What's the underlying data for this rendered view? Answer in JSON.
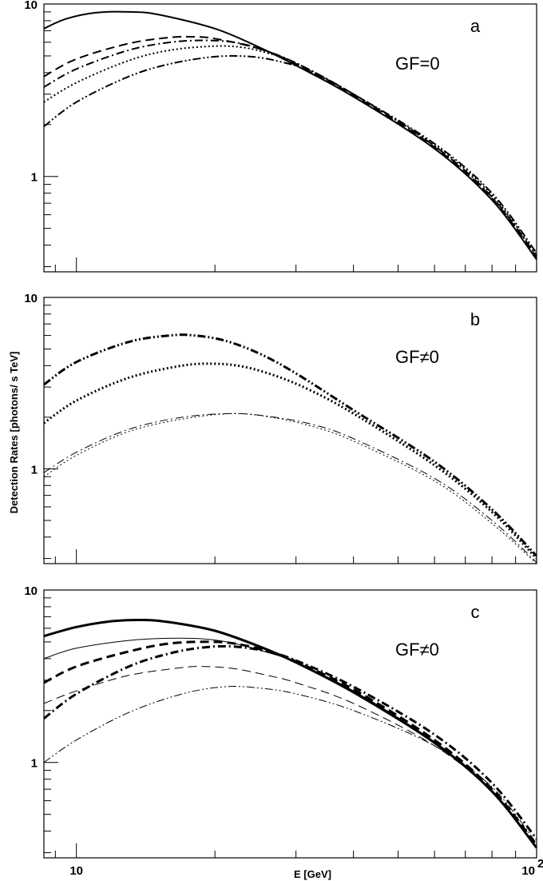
{
  "chart_data": [
    {
      "type": "line",
      "panel_label": "a",
      "annotation": "GF=0",
      "xscale": "log",
      "yscale": "log",
      "xlim": [
        8.5,
        100
      ],
      "ylim": [
        0.28,
        10
      ],
      "yticks": [
        {
          "value": 1,
          "label": "1"
        },
        {
          "value": 10,
          "label": "10"
        }
      ],
      "grid": false,
      "series": [
        {
          "style": "solid",
          "width": 2,
          "points": [
            [
              8.5,
              7.2
            ],
            [
              9.5,
              8.2
            ],
            [
              11,
              8.9
            ],
            [
              13,
              9.0
            ],
            [
              15,
              8.7
            ],
            [
              20,
              7.2
            ],
            [
              25,
              5.6
            ],
            [
              30,
              4.4
            ],
            [
              40,
              2.9
            ],
            [
              60,
              1.45
            ],
            [
              80,
              0.73
            ],
            [
              100,
              0.33
            ]
          ]
        },
        {
          "style": "dashed",
          "width": 2,
          "points": [
            [
              8.5,
              3.8
            ],
            [
              10,
              4.8
            ],
            [
              13,
              5.9
            ],
            [
              16,
              6.4
            ],
            [
              18,
              6.45
            ],
            [
              20,
              6.3
            ],
            [
              25,
              5.5
            ],
            [
              30,
              4.5
            ],
            [
              40,
              2.95
            ],
            [
              60,
              1.48
            ],
            [
              80,
              0.75
            ],
            [
              100,
              0.34
            ]
          ]
        },
        {
          "style": "dashdot",
          "width": 2,
          "points": [
            [
              8.5,
              3.3
            ],
            [
              10,
              4.2
            ],
            [
              13,
              5.4
            ],
            [
              16,
              6.0
            ],
            [
              19,
              6.15
            ],
            [
              22,
              6.0
            ],
            [
              25,
              5.5
            ],
            [
              30,
              4.55
            ],
            [
              40,
              3.0
            ],
            [
              60,
              1.5
            ],
            [
              80,
              0.76
            ],
            [
              100,
              0.345
            ]
          ]
        },
        {
          "style": "dotted",
          "width": 2,
          "points": [
            [
              8.5,
              2.7
            ],
            [
              10,
              3.5
            ],
            [
              13,
              4.7
            ],
            [
              16,
              5.4
            ],
            [
              20,
              5.7
            ],
            [
              23,
              5.6
            ],
            [
              26,
              5.2
            ],
            [
              30,
              4.55
            ],
            [
              40,
              3.0
            ],
            [
              60,
              1.52
            ],
            [
              80,
              0.78
            ],
            [
              100,
              0.35
            ]
          ]
        },
        {
          "style": "dashdotdot",
          "width": 2,
          "points": [
            [
              8.5,
              1.95
            ],
            [
              10,
              2.7
            ],
            [
              13,
              3.8
            ],
            [
              16,
              4.5
            ],
            [
              20,
              4.95
            ],
            [
              24,
              4.95
            ],
            [
              28,
              4.6
            ],
            [
              32,
              4.1
            ],
            [
              40,
              3.0
            ],
            [
              60,
              1.55
            ],
            [
              80,
              0.8
            ],
            [
              100,
              0.36
            ]
          ]
        }
      ]
    },
    {
      "type": "line",
      "panel_label": "b",
      "annotation": "GF≠0",
      "xscale": "log",
      "yscale": "log",
      "xlim": [
        8.5,
        100
      ],
      "ylim": [
        0.28,
        10
      ],
      "yticks": [
        {
          "value": 1,
          "label": "1"
        },
        {
          "value": 10,
          "label": "10"
        }
      ],
      "grid": false,
      "series": [
        {
          "style": "dashdotdot",
          "width": 3,
          "points": [
            [
              8.5,
              3.1
            ],
            [
              10,
              4.2
            ],
            [
              13,
              5.5
            ],
            [
              16,
              6.0
            ],
            [
              18,
              6.0
            ],
            [
              21,
              5.6
            ],
            [
              25,
              4.7
            ],
            [
              30,
              3.6
            ],
            [
              40,
              2.2
            ],
            [
              60,
              1.1
            ],
            [
              80,
              0.58
            ],
            [
              100,
              0.31
            ]
          ]
        },
        {
          "style": "dotted",
          "width": 3,
          "points": [
            [
              8.5,
              1.85
            ],
            [
              10,
              2.5
            ],
            [
              13,
              3.4
            ],
            [
              17,
              4.0
            ],
            [
              20,
              4.1
            ],
            [
              23,
              3.95
            ],
            [
              27,
              3.5
            ],
            [
              32,
              2.9
            ],
            [
              40,
              2.1
            ],
            [
              60,
              1.05
            ],
            [
              80,
              0.56
            ],
            [
              100,
              0.3
            ]
          ]
        },
        {
          "style": "dashdot",
          "width": 1,
          "points": [
            [
              8.5,
              0.95
            ],
            [
              10,
              1.25
            ],
            [
              13,
              1.7
            ],
            [
              17,
              2.0
            ],
            [
              22,
              2.1
            ],
            [
              27,
              2.0
            ],
            [
              33,
              1.8
            ],
            [
              40,
              1.5
            ],
            [
              60,
              0.88
            ],
            [
              80,
              0.5
            ],
            [
              100,
              0.285
            ]
          ]
        },
        {
          "style": "dotted",
          "width": 1,
          "points": [
            [
              8.5,
              0.9
            ],
            [
              10,
              1.2
            ],
            [
              13,
              1.65
            ],
            [
              17,
              1.95
            ],
            [
              22,
              2.1
            ],
            [
              27,
              1.98
            ],
            [
              33,
              1.75
            ],
            [
              40,
              1.45
            ],
            [
              60,
              0.85
            ],
            [
              80,
              0.48
            ],
            [
              100,
              0.28
            ]
          ]
        }
      ]
    },
    {
      "type": "line",
      "panel_label": "c",
      "annotation": "GF≠0",
      "xscale": "log",
      "yscale": "log",
      "xlim": [
        8.5,
        100
      ],
      "ylim": [
        0.28,
        10
      ],
      "xlabel": "E [GeV]",
      "xticks": [
        {
          "value": 10,
          "label": "10"
        },
        {
          "value": 100,
          "label": "10²"
        }
      ],
      "yticks": [
        {
          "value": 1,
          "label": "1"
        },
        {
          "value": 10,
          "label": "10"
        }
      ],
      "grid": false,
      "series": [
        {
          "style": "solid",
          "width": 3,
          "points": [
            [
              8.5,
              5.4
            ],
            [
              10,
              6.1
            ],
            [
              12,
              6.6
            ],
            [
              14,
              6.7
            ],
            [
              16,
              6.5
            ],
            [
              20,
              5.8
            ],
            [
              25,
              4.7
            ],
            [
              30,
              3.8
            ],
            [
              40,
              2.55
            ],
            [
              60,
              1.3
            ],
            [
              80,
              0.68
            ],
            [
              100,
              0.32
            ]
          ]
        },
        {
          "style": "solid",
          "width": 1,
          "points": [
            [
              8.5,
              4.0
            ],
            [
              10,
              4.6
            ],
            [
              13,
              5.1
            ],
            [
              16,
              5.25
            ],
            [
              19,
              5.2
            ],
            [
              22,
              4.9
            ],
            [
              26,
              4.35
            ],
            [
              30,
              3.8
            ],
            [
              40,
              2.6
            ],
            [
              60,
              1.32
            ],
            [
              80,
              0.69
            ],
            [
              100,
              0.325
            ]
          ]
        },
        {
          "style": "dashed",
          "width": 3,
          "points": [
            [
              8.5,
              2.9
            ],
            [
              10,
              3.6
            ],
            [
              13,
              4.4
            ],
            [
              16,
              4.9
            ],
            [
              20,
              5.0
            ],
            [
              23,
              4.8
            ],
            [
              27,
              4.3
            ],
            [
              30,
              3.85
            ],
            [
              40,
              2.65
            ],
            [
              60,
              1.35
            ],
            [
              80,
              0.7
            ],
            [
              100,
              0.33
            ]
          ]
        },
        {
          "style": "dashdot",
          "width": 3,
          "points": [
            [
              8.5,
              1.8
            ],
            [
              10,
              2.5
            ],
            [
              13,
              3.6
            ],
            [
              16,
              4.3
            ],
            [
              19,
              4.65
            ],
            [
              22,
              4.7
            ],
            [
              26,
              4.4
            ],
            [
              30,
              3.9
            ],
            [
              40,
              2.75
            ],
            [
              60,
              1.45
            ],
            [
              80,
              0.76
            ],
            [
              100,
              0.36
            ]
          ]
        },
        {
          "style": "dashed",
          "width": 1,
          "points": [
            [
              8.5,
              2.2
            ],
            [
              10,
              2.6
            ],
            [
              13,
              3.2
            ],
            [
              17,
              3.55
            ],
            [
              19,
              3.6
            ],
            [
              22,
              3.5
            ],
            [
              26,
              3.2
            ],
            [
              30,
              2.9
            ],
            [
              40,
              2.2
            ],
            [
              60,
              1.25
            ],
            [
              80,
              0.68
            ],
            [
              100,
              0.325
            ]
          ]
        },
        {
          "style": "dashdotdot",
          "width": 1,
          "points": [
            [
              8.5,
              1.0
            ],
            [
              10,
              1.35
            ],
            [
              13,
              1.95
            ],
            [
              17,
              2.5
            ],
            [
              21,
              2.75
            ],
            [
              25,
              2.7
            ],
            [
              30,
              2.5
            ],
            [
              40,
              2.0
            ],
            [
              60,
              1.25
            ],
            [
              80,
              0.72
            ],
            [
              100,
              0.34
            ]
          ]
        }
      ]
    }
  ],
  "shared": {
    "ylabel": "Detection Rates [photons/ s TeV]"
  }
}
